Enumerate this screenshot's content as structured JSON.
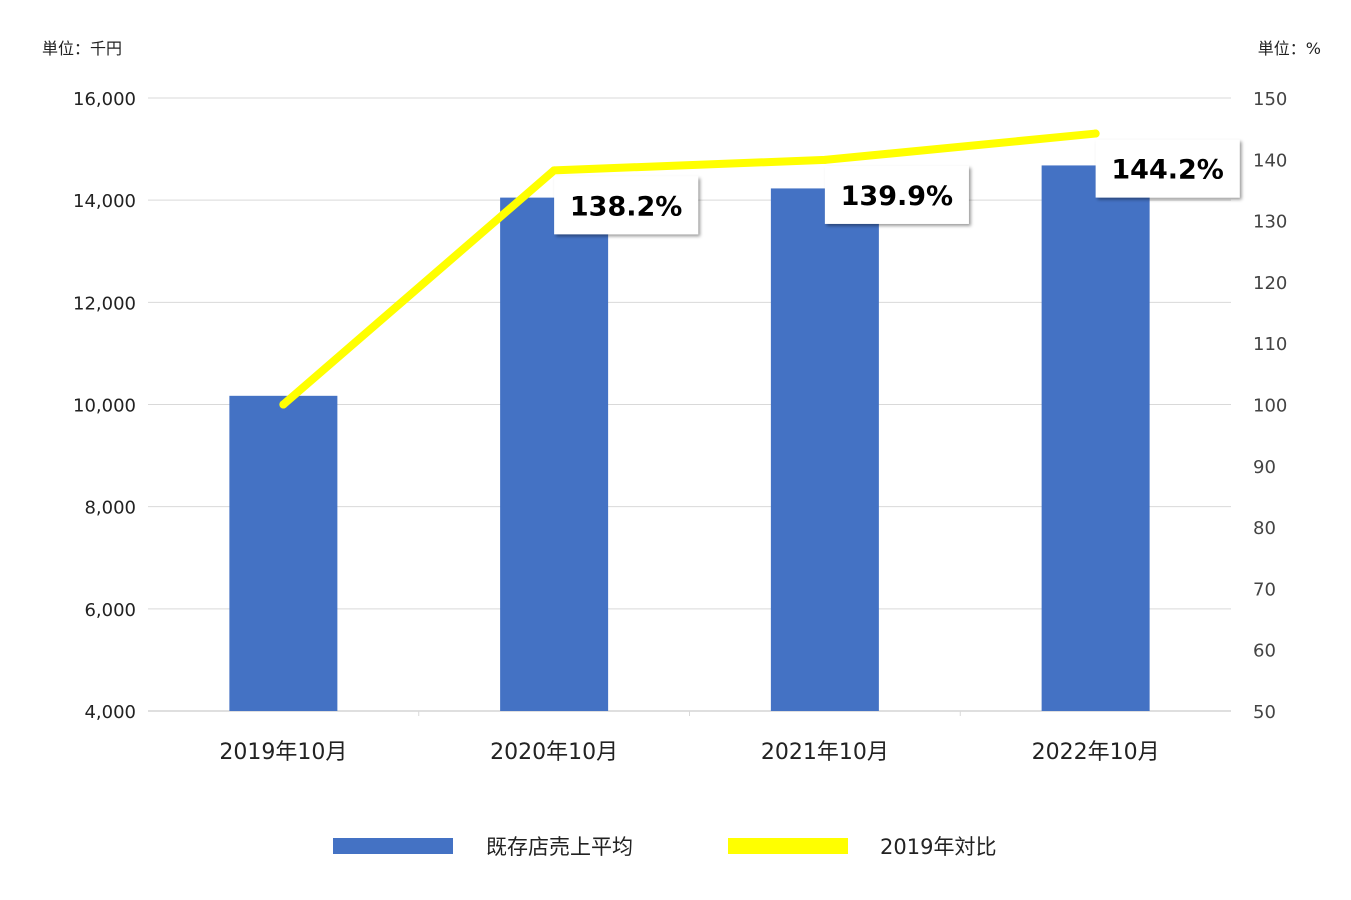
{
  "chart_data": {
    "type": "bar",
    "left_axis_unit": "単位：千円",
    "right_axis_unit": "単位：%",
    "categories": [
      "2019年10月",
      "2020年10月",
      "2021年10月",
      "2022年10月"
    ],
    "series": [
      {
        "name": "既存店売上平均",
        "type": "bar",
        "axis": "left",
        "color": "#4472C4",
        "values": [
          10170,
          14050,
          14230,
          14680
        ]
      },
      {
        "name": "2019年対比",
        "type": "line",
        "axis": "right",
        "color": "#FFFF00",
        "values": [
          100,
          138.2,
          139.9,
          144.2
        ]
      }
    ],
    "left_axis": {
      "ylim": [
        4000,
        16000
      ],
      "ticks": [
        "4,000",
        "6,000",
        "8,000",
        "10,000",
        "12,000",
        "14,000",
        "16,000"
      ]
    },
    "right_axis": {
      "ylim": [
        50,
        150
      ],
      "ticks": [
        "50",
        "60",
        "70",
        "80",
        "90",
        "100",
        "110",
        "120",
        "130",
        "140",
        "150"
      ]
    },
    "callouts": [
      {
        "index": 1,
        "label": "138.2%"
      },
      {
        "index": 2,
        "label": "139.9%"
      },
      {
        "index": 3,
        "label": "144.2%"
      }
    ],
    "grid": true,
    "legend_position": "bottom"
  }
}
